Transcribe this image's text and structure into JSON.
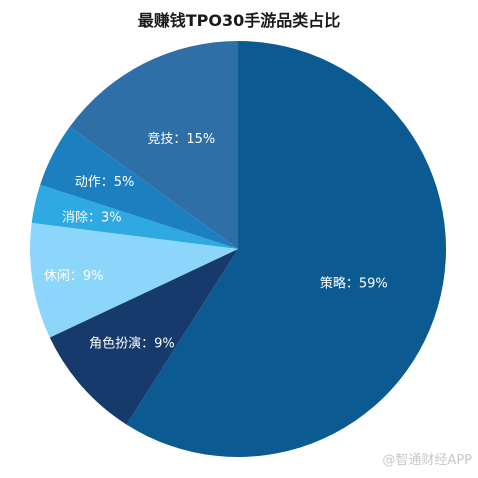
{
  "chart_data": {
    "type": "pie",
    "title": "最赚钱TPO30手游品类占比",
    "slices": [
      {
        "label": "策略：59%",
        "value": 59,
        "color": "#0c5a92"
      },
      {
        "label": "角色扮演：9%",
        "value": 9,
        "color": "#153a6b"
      },
      {
        "label": "休闲：9%",
        "value": 9,
        "color": "#8dd6fb"
      },
      {
        "label": "消除：3%",
        "value": 3,
        "color": "#2fa9e2"
      },
      {
        "label": "动作：5%",
        "value": 5,
        "color": "#1c7fc0"
      },
      {
        "label": "竞技：15%",
        "value": 15,
        "color": "#2f6fa8"
      }
    ]
  },
  "watermark": "@智通财经APP"
}
